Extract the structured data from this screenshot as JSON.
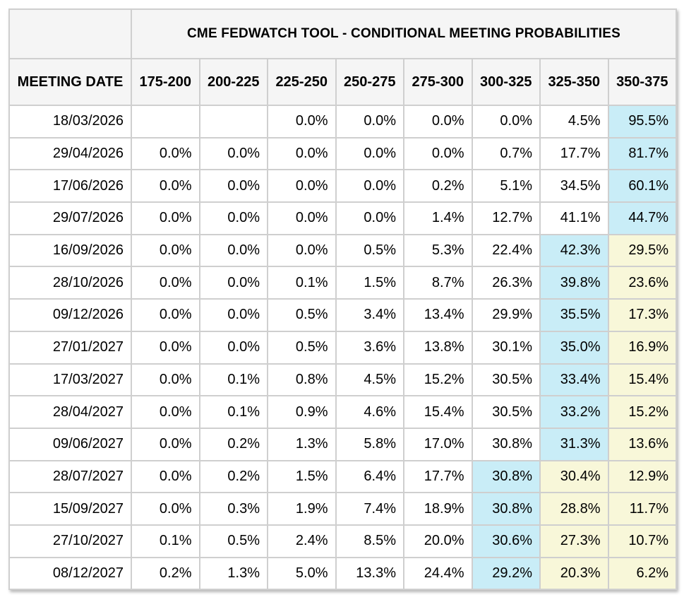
{
  "table": {
    "title": "CME FEDWATCH TOOL - CONDITIONAL MEETING PROBABILITIES",
    "columns": [
      "MEETING DATE",
      "175-200",
      "200-225",
      "225-250",
      "250-275",
      "275-300",
      "300-325",
      "325-350",
      "350-375"
    ],
    "colors": {
      "highlight_blue": "#c9edf7",
      "highlight_yellow": "#f8f7d9",
      "header_bg": "#f5f5f5",
      "grid_line": "#cfcfcf"
    },
    "rows": [
      {
        "date": "18/03/2026",
        "cells": [
          "",
          "",
          "0.0%",
          "0.0%",
          "0.0%",
          "0.0%",
          "4.5%",
          "95.5%"
        ],
        "marks": [
          "",
          "",
          "",
          "",
          "",
          "",
          "",
          "blue"
        ]
      },
      {
        "date": "29/04/2026",
        "cells": [
          "0.0%",
          "0.0%",
          "0.0%",
          "0.0%",
          "0.0%",
          "0.7%",
          "17.7%",
          "81.7%"
        ],
        "marks": [
          "",
          "",
          "",
          "",
          "",
          "",
          "",
          "blue"
        ]
      },
      {
        "date": "17/06/2026",
        "cells": [
          "0.0%",
          "0.0%",
          "0.0%",
          "0.0%",
          "0.2%",
          "5.1%",
          "34.5%",
          "60.1%"
        ],
        "marks": [
          "",
          "",
          "",
          "",
          "",
          "",
          "",
          "blue"
        ]
      },
      {
        "date": "29/07/2026",
        "cells": [
          "0.0%",
          "0.0%",
          "0.0%",
          "0.0%",
          "1.4%",
          "12.7%",
          "41.1%",
          "44.7%"
        ],
        "marks": [
          "",
          "",
          "",
          "",
          "",
          "",
          "",
          "blue"
        ]
      },
      {
        "date": "16/09/2026",
        "cells": [
          "0.0%",
          "0.0%",
          "0.0%",
          "0.5%",
          "5.3%",
          "22.4%",
          "42.3%",
          "29.5%"
        ],
        "marks": [
          "",
          "",
          "",
          "",
          "",
          "",
          "blue",
          "yellow"
        ]
      },
      {
        "date": "28/10/2026",
        "cells": [
          "0.0%",
          "0.0%",
          "0.1%",
          "1.5%",
          "8.7%",
          "26.3%",
          "39.8%",
          "23.6%"
        ],
        "marks": [
          "",
          "",
          "",
          "",
          "",
          "",
          "blue",
          "yellow"
        ]
      },
      {
        "date": "09/12/2026",
        "cells": [
          "0.0%",
          "0.0%",
          "0.5%",
          "3.4%",
          "13.4%",
          "29.9%",
          "35.5%",
          "17.3%"
        ],
        "marks": [
          "",
          "",
          "",
          "",
          "",
          "",
          "blue",
          "yellow"
        ]
      },
      {
        "date": "27/01/2027",
        "cells": [
          "0.0%",
          "0.0%",
          "0.5%",
          "3.6%",
          "13.8%",
          "30.1%",
          "35.0%",
          "16.9%"
        ],
        "marks": [
          "",
          "",
          "",
          "",
          "",
          "",
          "blue",
          "yellow"
        ]
      },
      {
        "date": "17/03/2027",
        "cells": [
          "0.0%",
          "0.1%",
          "0.8%",
          "4.5%",
          "15.2%",
          "30.5%",
          "33.4%",
          "15.4%"
        ],
        "marks": [
          "",
          "",
          "",
          "",
          "",
          "",
          "blue",
          "yellow"
        ]
      },
      {
        "date": "28/04/2027",
        "cells": [
          "0.0%",
          "0.1%",
          "0.9%",
          "4.6%",
          "15.4%",
          "30.5%",
          "33.2%",
          "15.2%"
        ],
        "marks": [
          "",
          "",
          "",
          "",
          "",
          "",
          "blue",
          "yellow"
        ]
      },
      {
        "date": "09/06/2027",
        "cells": [
          "0.0%",
          "0.2%",
          "1.3%",
          "5.8%",
          "17.0%",
          "30.8%",
          "31.3%",
          "13.6%"
        ],
        "marks": [
          "",
          "",
          "",
          "",
          "",
          "",
          "blue",
          "yellow"
        ]
      },
      {
        "date": "28/07/2027",
        "cells": [
          "0.0%",
          "0.2%",
          "1.5%",
          "6.4%",
          "17.7%",
          "30.8%",
          "30.4%",
          "12.9%"
        ],
        "marks": [
          "",
          "",
          "",
          "",
          "",
          "blue",
          "yellow",
          "yellow"
        ]
      },
      {
        "date": "15/09/2027",
        "cells": [
          "0.0%",
          "0.3%",
          "1.9%",
          "7.4%",
          "18.9%",
          "30.8%",
          "28.8%",
          "11.7%"
        ],
        "marks": [
          "",
          "",
          "",
          "",
          "",
          "blue",
          "yellow",
          "yellow"
        ]
      },
      {
        "date": "27/10/2027",
        "cells": [
          "0.1%",
          "0.5%",
          "2.4%",
          "8.5%",
          "20.0%",
          "30.6%",
          "27.3%",
          "10.7%"
        ],
        "marks": [
          "",
          "",
          "",
          "",
          "",
          "blue",
          "yellow",
          "yellow"
        ]
      },
      {
        "date": "08/12/2027",
        "cells": [
          "0.2%",
          "1.3%",
          "5.0%",
          "13.3%",
          "24.4%",
          "29.2%",
          "20.3%",
          "6.2%"
        ],
        "marks": [
          "",
          "",
          "",
          "",
          "",
          "blue",
          "yellow",
          "yellow"
        ]
      }
    ]
  },
  "chart_data": {
    "type": "table",
    "title": "CME FEDWATCH TOOL - CONDITIONAL MEETING PROBABILITIES",
    "units": "%",
    "columns": [
      "MEETING DATE",
      "175-200",
      "200-225",
      "225-250",
      "250-275",
      "275-300",
      "300-325",
      "325-350",
      "350-375"
    ],
    "rows": [
      [
        "18/03/2026",
        null,
        null,
        0.0,
        0.0,
        0.0,
        0.0,
        4.5,
        95.5
      ],
      [
        "29/04/2026",
        0.0,
        0.0,
        0.0,
        0.0,
        0.0,
        0.7,
        17.7,
        81.7
      ],
      [
        "17/06/2026",
        0.0,
        0.0,
        0.0,
        0.0,
        0.2,
        5.1,
        34.5,
        60.1
      ],
      [
        "29/07/2026",
        0.0,
        0.0,
        0.0,
        0.0,
        1.4,
        12.7,
        41.1,
        44.7
      ],
      [
        "16/09/2026",
        0.0,
        0.0,
        0.0,
        0.5,
        5.3,
        22.4,
        42.3,
        29.5
      ],
      [
        "28/10/2026",
        0.0,
        0.0,
        0.1,
        1.5,
        8.7,
        26.3,
        39.8,
        23.6
      ],
      [
        "09/12/2026",
        0.0,
        0.0,
        0.5,
        3.4,
        13.4,
        29.9,
        35.5,
        17.3
      ],
      [
        "27/01/2027",
        0.0,
        0.0,
        0.5,
        3.6,
        13.8,
        30.1,
        35.0,
        16.9
      ],
      [
        "17/03/2027",
        0.0,
        0.1,
        0.8,
        4.5,
        15.2,
        30.5,
        33.4,
        15.4
      ],
      [
        "28/04/2027",
        0.0,
        0.1,
        0.9,
        4.6,
        15.4,
        30.5,
        33.2,
        15.2
      ],
      [
        "09/06/2027",
        0.0,
        0.2,
        1.3,
        5.8,
        17.0,
        30.8,
        31.3,
        13.6
      ],
      [
        "28/07/2027",
        0.0,
        0.2,
        1.5,
        6.4,
        17.7,
        30.8,
        30.4,
        12.9
      ],
      [
        "15/09/2027",
        0.0,
        0.3,
        1.9,
        7.4,
        18.9,
        30.8,
        28.8,
        11.7
      ],
      [
        "27/10/2027",
        0.1,
        0.5,
        2.4,
        8.5,
        20.0,
        30.6,
        27.3,
        10.7
      ],
      [
        "08/12/2027",
        0.2,
        1.3,
        5.0,
        13.3,
        24.4,
        29.2,
        20.3,
        6.2
      ]
    ],
    "highlight_blue_hex": "#c9edf7",
    "highlight_yellow_hex": "#f8f7d9"
  }
}
